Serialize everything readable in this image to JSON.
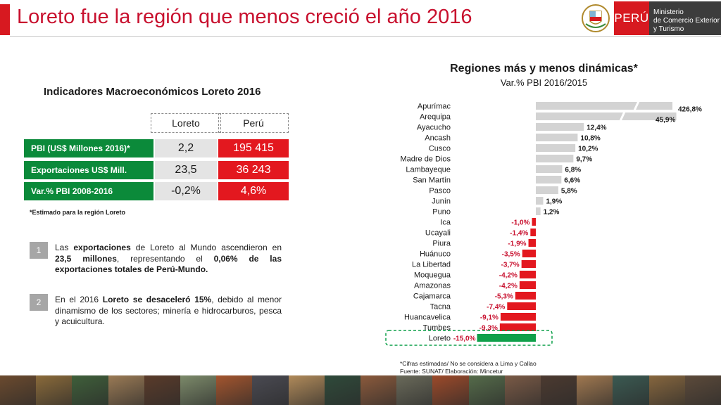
{
  "slide": {
    "title": "Loreto fue la región que menos creció el año 2016"
  },
  "header_logo": {
    "peru_label": "PERÚ",
    "ministry_lines": [
      "Ministerio",
      "de Comercio Exterior",
      "y Turismo"
    ]
  },
  "table": {
    "title": "Indicadores Macroeconómicos Loreto 2016",
    "columns": [
      "Loreto",
      "Perú"
    ],
    "rows": [
      {
        "label": "PBI (US$ Millones 2016)*",
        "loreto": "2,2",
        "peru": "195 415"
      },
      {
        "label": "Exportaciones US$ Mill.",
        "loreto": "23,5",
        "peru": "36 243"
      },
      {
        "label": "Var.% PBI 2008-2016",
        "loreto": "-0,2%",
        "peru": "4,6%"
      }
    ],
    "note": "*Estimado para la región Loreto"
  },
  "bullets": [
    {
      "num": "1",
      "parts": [
        {
          "t": "Las ",
          "b": false
        },
        {
          "t": "exportaciones",
          "b": true
        },
        {
          "t": " de Loreto al Mundo ascendieron en ",
          "b": false
        },
        {
          "t": "23,5 millones",
          "b": true
        },
        {
          "t": ", representando el ",
          "b": false
        },
        {
          "t": "0,06% de las exportaciones totales de Perú-Mundo.",
          "b": true
        }
      ]
    },
    {
      "num": "2",
      "parts": [
        {
          "t": "En el 2016 ",
          "b": false
        },
        {
          "t": "Loreto se desaceleró 15%",
          "b": true
        },
        {
          "t": ", debido al menor dinamismo de los sectores; minería e hidrocarburos, pesca y acuicultura.",
          "b": false
        }
      ]
    }
  ],
  "colors": {
    "positive": "#d3d3d3",
    "negative": "#e3181f",
    "highlight": "#0fa04a",
    "brand_red": "#d71920"
  },
  "chart_data": {
    "type": "bar",
    "orientation": "horizontal",
    "title": "Regiones más y menos dinámicas*",
    "subtitle": "Var.% PBI 2016/2015",
    "axis_break": true,
    "categories": [
      "Apurímac",
      "Arequipa",
      "Ayacucho",
      "Ancash",
      "Cusco",
      "Madre de Dios",
      "Lambayeque",
      "San Martín",
      "Pasco",
      "Junín",
      "Puno",
      "Ica",
      "Ucayali",
      "Piura",
      "Huánuco",
      "La Libertad",
      "Moquegua",
      "Amazonas",
      "Cajamarca",
      "Tacna",
      "Huancavelica",
      "Tumbes",
      "Loreto"
    ],
    "values": [
      426.8,
      45.9,
      12.4,
      10.8,
      10.2,
      9.7,
      6.8,
      6.6,
      5.8,
      1.9,
      1.2,
      -1.0,
      -1.4,
      -1.9,
      -3.5,
      -3.7,
      -4.2,
      -4.2,
      -5.3,
      -7.4,
      -9.1,
      -9.3,
      -15.0
    ],
    "labels": [
      "426,8%",
      "45,9%",
      "12,4%",
      "10,8%",
      "10,2%",
      "9,7%",
      "6,8%",
      "6,6%",
      "5,8%",
      "1,9%",
      "1,2%",
      "-1,0%",
      "-1,4%",
      "-1,9%",
      "-3,5%",
      "-3,7%",
      "-4,2%",
      "-4,2%",
      "-5,3%",
      "-7,4%",
      "-9,1%",
      "-9,3%",
      "-15,0%"
    ],
    "highlight": "Loreto",
    "footnote_lines": [
      "*Cifras estimadas/ No se considera a Lima y Callao",
      "Fuente: SUNAT/ Elaboración: Mincetur"
    ]
  }
}
